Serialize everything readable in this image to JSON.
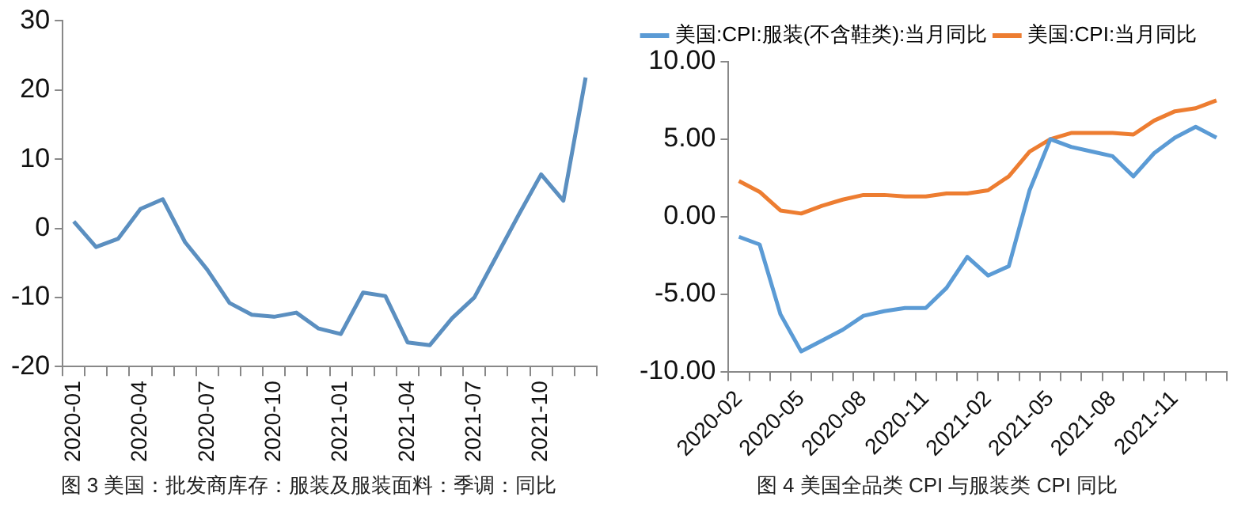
{
  "chart_data": [
    {
      "type": "line",
      "categories": [
        "2020-01",
        null,
        null,
        "2020-04",
        null,
        null,
        "2020-07",
        null,
        null,
        "2020-10",
        null,
        null,
        "2021-01",
        null,
        null,
        "2021-04",
        null,
        null,
        "2021-07",
        null,
        null,
        "2021-10",
        null,
        null
      ],
      "series": [
        {
          "color": "#5b8fc0",
          "values": [
            1,
            -2.7,
            -1.5,
            2.8,
            4.2,
            -2,
            -6,
            -10.8,
            -12.5,
            -12.8,
            -12.2,
            -14.5,
            -15.3,
            -9.3,
            -9.8,
            -16.5,
            -16.9,
            -13,
            -10,
            -4,
            2,
            7.8,
            4,
            21.8
          ]
        }
      ],
      "ylim": [
        -20,
        30
      ],
      "yticks": [
        -20,
        -10,
        0,
        10,
        20,
        30
      ],
      "grid": false,
      "legend": false,
      "annotations": [
        "图 3 美国：批发商库存：服装及服装面料：季调：同比"
      ]
    },
    {
      "type": "line",
      "categories": [
        "2020-02",
        null,
        null,
        "2020-05",
        null,
        null,
        "2020-08",
        null,
        null,
        "2020-11",
        null,
        null,
        "2021-02",
        null,
        null,
        "2021-05",
        null,
        null,
        "2021-08",
        null,
        null,
        "2021-11",
        null,
        null
      ],
      "series": [
        {
          "name": "美国:CPI:服装(不含鞋类):当月同比",
          "color": "#5b9bd5",
          "values": [
            -1.3,
            -1.8,
            -6.3,
            -8.7,
            -8.0,
            -7.3,
            -6.4,
            -6.1,
            -5.9,
            -5.9,
            -4.6,
            -2.6,
            -3.8,
            -3.2,
            1.7,
            5.0,
            4.5,
            4.2,
            3.9,
            2.6,
            4.1,
            5.1,
            5.8,
            5.1
          ]
        },
        {
          "name": "美国:CPI:当月同比",
          "color": "#ed7d31",
          "values": [
            2.3,
            1.6,
            0.4,
            0.2,
            0.7,
            1.1,
            1.4,
            1.4,
            1.3,
            1.3,
            1.5,
            1.5,
            1.7,
            2.6,
            4.2,
            5.0,
            5.4,
            5.4,
            5.4,
            5.3,
            6.2,
            6.8,
            7.0,
            7.5
          ]
        }
      ],
      "ylim": [
        -10,
        10
      ],
      "yticks": [
        {
          "value": -10,
          "label": "-10.00"
        },
        {
          "value": -5,
          "label": "-5.00"
        },
        {
          "value": 0,
          "label": "0.00"
        },
        {
          "value": 5,
          "label": "5.00"
        },
        {
          "value": 10,
          "label": "10.00"
        }
      ],
      "grid": false,
      "legend": "top left",
      "annotations": [
        "图 4 美国全品类 CPI 与服装类 CPI 同比"
      ]
    }
  ]
}
